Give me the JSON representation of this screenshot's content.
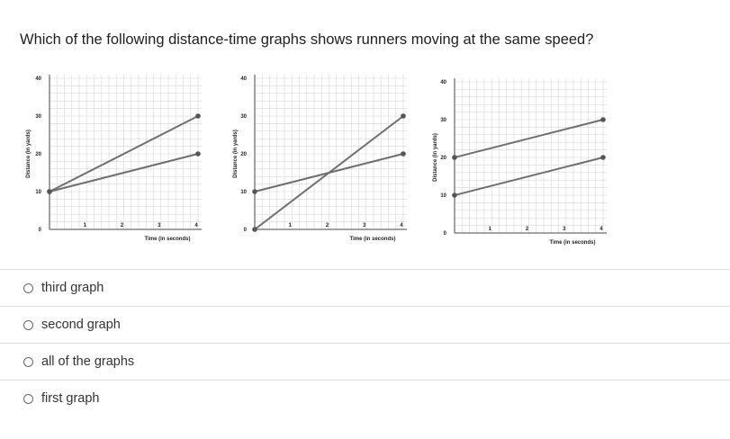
{
  "question": "Which of the following distance-time graphs shows runners moving at the same speed?",
  "graphs": [
    {
      "y_label": "Distance (in yards)",
      "x_label": "Time (in seconds)",
      "y_ticks": [
        "0",
        "10",
        "20",
        "30",
        "40"
      ],
      "x_ticks": [
        "1",
        "2",
        "3",
        "4"
      ],
      "lines": [
        {
          "start": [
            0,
            10
          ],
          "end": [
            4,
            30
          ]
        },
        {
          "start": [
            0,
            10
          ],
          "end": [
            4,
            20
          ]
        }
      ]
    },
    {
      "y_label": "Distance (in yards)",
      "x_label": "Time (in seconds)",
      "y_ticks": [
        "0",
        "10",
        "20",
        "30",
        "40"
      ],
      "x_ticks": [
        "1",
        "2",
        "3",
        "4"
      ],
      "lines": [
        {
          "start": [
            0,
            0
          ],
          "end": [
            4,
            30
          ]
        },
        {
          "start": [
            0,
            10
          ],
          "end": [
            4,
            20
          ]
        }
      ]
    },
    {
      "y_label": "Distance (in yards)",
      "x_label": "Time (in seconds)",
      "y_ticks": [
        "0",
        "10",
        "20",
        "30",
        "40"
      ],
      "x_ticks": [
        "1",
        "2",
        "3",
        "4"
      ],
      "lines": [
        {
          "start": [
            0,
            20
          ],
          "end": [
            4,
            30
          ]
        },
        {
          "start": [
            0,
            10
          ],
          "end": [
            4,
            20
          ]
        }
      ]
    }
  ],
  "options": [
    {
      "label": "third graph",
      "selected": false
    },
    {
      "label": "second graph",
      "selected": false
    },
    {
      "label": "all of the graphs",
      "selected": false
    },
    {
      "label": "first graph",
      "selected": false
    }
  ],
  "colors": {
    "line": "#6f6f6f",
    "grid": "#d6d6d6",
    "border": "#dcdcdc"
  }
}
